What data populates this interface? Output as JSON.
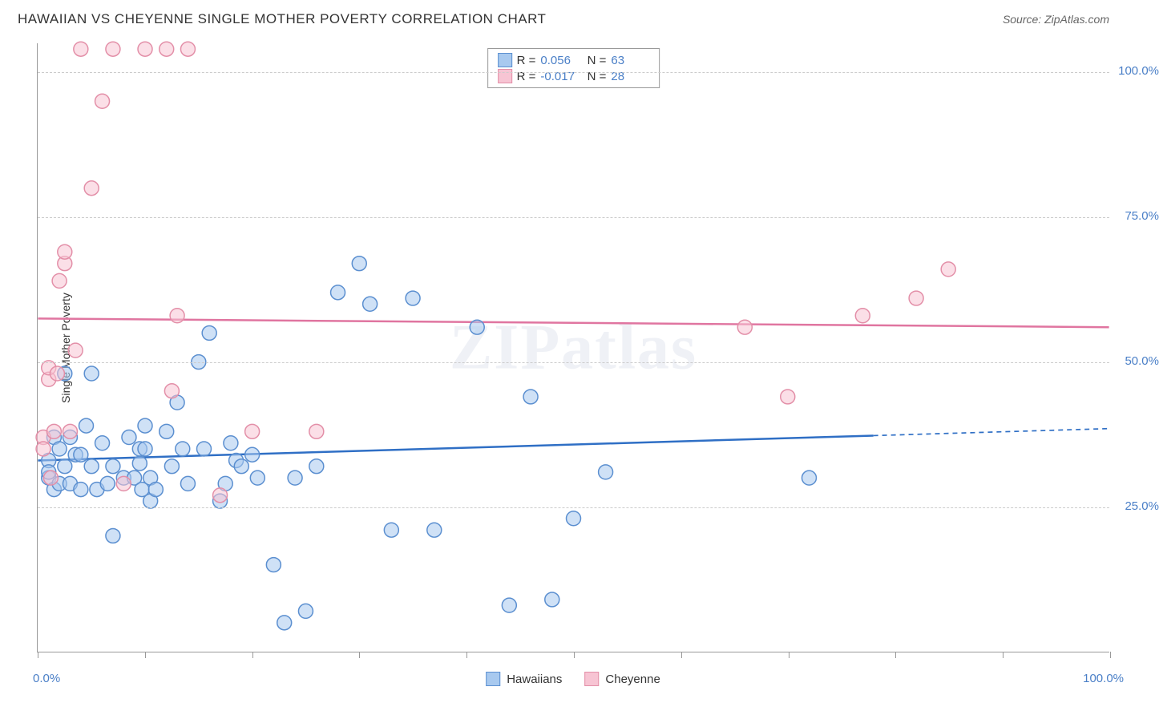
{
  "header": {
    "title": "HAWAIIAN VS CHEYENNE SINGLE MOTHER POVERTY CORRELATION CHART",
    "source": "Source: ZipAtlas.com"
  },
  "watermark": "ZIPatlas",
  "chart": {
    "type": "scatter",
    "ylabel": "Single Mother Poverty",
    "xlim": [
      0,
      100
    ],
    "ylim": [
      0,
      105
    ],
    "x_ticks_major": [
      0,
      10,
      20,
      30,
      40,
      50,
      60,
      70,
      80,
      90,
      100
    ],
    "x_tick_labels": [
      {
        "pos": 0,
        "text": "0.0%"
      },
      {
        "pos": 100,
        "text": "100.0%"
      }
    ],
    "y_grid": [
      25,
      50,
      75,
      100
    ],
    "y_tick_labels": [
      {
        "pos": 25,
        "text": "25.0%"
      },
      {
        "pos": 50,
        "text": "50.0%"
      },
      {
        "pos": 75,
        "text": "75.0%"
      },
      {
        "pos": 100,
        "text": "100.0%"
      }
    ],
    "background_color": "#ffffff",
    "grid_color": "#cccccc",
    "axis_color": "#999999",
    "label_color": "#4a7fc7",
    "marker_radius": 9,
    "marker_stroke_width": 1.5,
    "marker_opacity": 0.55,
    "trend_line_width": 2.5,
    "series": [
      {
        "name": "Hawaiians",
        "fill": "#a8c9ef",
        "stroke": "#5b8fd0",
        "line_color": "#2f6fc5",
        "r": 0.056,
        "n": 63,
        "trend": {
          "y_at_x0": 33.0,
          "y_at_x100": 38.5,
          "solid_end_x": 78,
          "dashed": true
        },
        "points": [
          [
            1,
            30
          ],
          [
            1,
            33
          ],
          [
            1,
            31
          ],
          [
            1.5,
            37
          ],
          [
            1.5,
            28
          ],
          [
            2,
            35
          ],
          [
            2,
            29
          ],
          [
            2.5,
            48
          ],
          [
            2.5,
            32
          ],
          [
            3,
            37
          ],
          [
            3,
            29
          ],
          [
            3.5,
            34
          ],
          [
            4,
            34
          ],
          [
            4,
            28
          ],
          [
            4.5,
            39
          ],
          [
            5,
            32
          ],
          [
            5,
            48
          ],
          [
            5.5,
            28
          ],
          [
            6,
            36
          ],
          [
            6.5,
            29
          ],
          [
            7,
            32
          ],
          [
            7,
            20
          ],
          [
            8,
            30
          ],
          [
            8.5,
            37
          ],
          [
            9,
            30
          ],
          [
            9.5,
            35
          ],
          [
            9.5,
            32.5
          ],
          [
            9.7,
            28
          ],
          [
            10,
            35
          ],
          [
            10,
            39
          ],
          [
            10.5,
            30
          ],
          [
            10.5,
            26
          ],
          [
            11,
            28
          ],
          [
            12,
            38
          ],
          [
            12.5,
            32
          ],
          [
            13,
            43
          ],
          [
            13.5,
            35
          ],
          [
            14,
            29
          ],
          [
            15,
            50
          ],
          [
            15.5,
            35
          ],
          [
            16,
            55
          ],
          [
            17,
            26
          ],
          [
            17.5,
            29
          ],
          [
            18,
            36
          ],
          [
            18.5,
            33
          ],
          [
            19,
            32
          ],
          [
            20,
            34
          ],
          [
            20.5,
            30
          ],
          [
            22,
            15
          ],
          [
            23,
            5
          ],
          [
            24,
            30
          ],
          [
            25,
            7
          ],
          [
            26,
            32
          ],
          [
            28,
            62
          ],
          [
            30,
            67
          ],
          [
            31,
            60
          ],
          [
            33,
            21
          ],
          [
            35,
            61
          ],
          [
            37,
            21
          ],
          [
            41,
            56
          ],
          [
            44,
            8
          ],
          [
            46,
            44
          ],
          [
            48,
            9
          ],
          [
            50,
            23
          ],
          [
            53,
            31
          ],
          [
            72,
            30
          ]
        ]
      },
      {
        "name": "Cheyenne",
        "fill": "#f7c4d3",
        "stroke": "#e38fa8",
        "line_color": "#e075a0",
        "r": -0.017,
        "n": 28,
        "trend": {
          "y_at_x0": 57.5,
          "y_at_x100": 56.0,
          "solid_end_x": 100,
          "dashed": false
        },
        "points": [
          [
            0.5,
            37
          ],
          [
            0.5,
            35
          ],
          [
            1,
            47
          ],
          [
            1,
            49
          ],
          [
            1.2,
            30
          ],
          [
            1.5,
            38
          ],
          [
            1.8,
            48
          ],
          [
            2,
            64
          ],
          [
            2.5,
            67
          ],
          [
            2.5,
            69
          ],
          [
            3,
            38
          ],
          [
            3.5,
            52
          ],
          [
            4,
            104
          ],
          [
            5,
            80
          ],
          [
            6,
            95
          ],
          [
            7,
            104
          ],
          [
            8,
            29
          ],
          [
            10,
            104
          ],
          [
            12,
            104
          ],
          [
            12.5,
            45
          ],
          [
            13,
            58
          ],
          [
            14,
            104
          ],
          [
            17,
            27
          ],
          [
            20,
            38
          ],
          [
            26,
            38
          ],
          [
            66,
            56
          ],
          [
            70,
            44
          ],
          [
            77,
            58
          ],
          [
            82,
            61
          ],
          [
            85,
            66
          ]
        ]
      }
    ],
    "legend_bottom": [
      {
        "label": "Hawaiians",
        "fill": "#a8c9ef",
        "stroke": "#5b8fd0"
      },
      {
        "label": "Cheyenne",
        "fill": "#f7c4d3",
        "stroke": "#e38fa8"
      }
    ]
  }
}
